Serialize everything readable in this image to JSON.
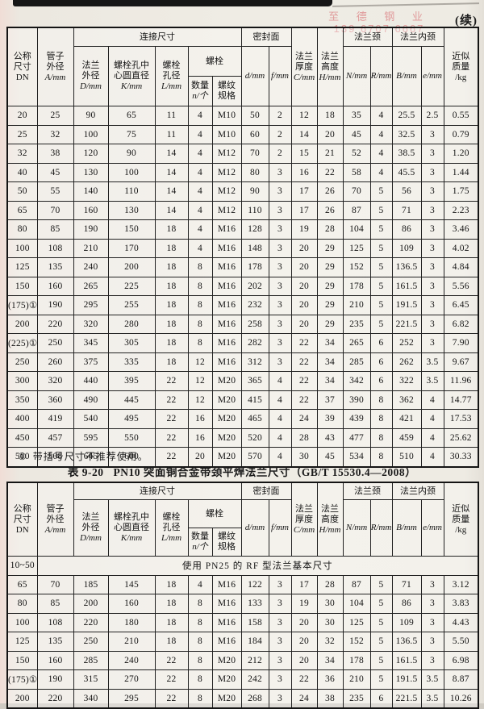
{
  "page": {
    "continued_label": "(续)",
    "watermark": {
      "name": "至 德 钢 业",
      "phone": "139 6707 6667",
      "color": "#e09c9c"
    }
  },
  "headers": {
    "dn": [
      "公称",
      "尺寸",
      "DN"
    ],
    "pipe": [
      "管子",
      "外径",
      "A/mm"
    ],
    "group_connect": "连接尺寸",
    "flange_od": [
      "法兰",
      "外径",
      "D/mm"
    ],
    "bolt_circle": [
      "螺栓孔中",
      "心圆直径",
      "K/mm"
    ],
    "bolt_hole": [
      "螺栓",
      "孔径",
      "L/mm"
    ],
    "group_bolt": "螺栓",
    "bolt_qty": [
      "数量",
      "n/个"
    ],
    "bolt_thread": [
      "螺纹",
      "规格"
    ],
    "group_seal": "密封面",
    "seal_d": "d/mm",
    "seal_f": "f/mm",
    "thickness": [
      "法兰",
      "厚度",
      "C/mm"
    ],
    "height": [
      "法兰",
      "高度",
      "H/mm"
    ],
    "group_neck": "法兰颈",
    "neck_n": "N/mm",
    "neck_r": "R/mm",
    "group_inner_neck": "法兰内颈",
    "inner_b": "B/mm",
    "inner_e": "e/mm",
    "mass": [
      "近似",
      "质量",
      "/kg"
    ]
  },
  "table1": {
    "rows": [
      [
        "20",
        "25",
        "90",
        "65",
        "11",
        "4",
        "M10",
        "50",
        "2",
        "12",
        "18",
        "35",
        "4",
        "25.5",
        "2.5",
        "0.55"
      ],
      [
        "25",
        "32",
        "100",
        "75",
        "11",
        "4",
        "M10",
        "60",
        "2",
        "14",
        "20",
        "45",
        "4",
        "32.5",
        "3",
        "0.79"
      ],
      [
        "32",
        "38",
        "120",
        "90",
        "14",
        "4",
        "M12",
        "70",
        "2",
        "15",
        "21",
        "52",
        "4",
        "38.5",
        "3",
        "1.20"
      ],
      [
        "40",
        "45",
        "130",
        "100",
        "14",
        "4",
        "M12",
        "80",
        "3",
        "16",
        "22",
        "58",
        "4",
        "45.5",
        "3",
        "1.44"
      ],
      [
        "50",
        "55",
        "140",
        "110",
        "14",
        "4",
        "M12",
        "90",
        "3",
        "17",
        "26",
        "70",
        "5",
        "56",
        "3",
        "1.75"
      ],
      [
        "65",
        "70",
        "160",
        "130",
        "14",
        "4",
        "M12",
        "110",
        "3",
        "17",
        "26",
        "87",
        "5",
        "71",
        "3",
        "2.23"
      ],
      [
        "80",
        "85",
        "190",
        "150",
        "18",
        "4",
        "M16",
        "128",
        "3",
        "19",
        "28",
        "104",
        "5",
        "86",
        "3",
        "3.46"
      ],
      [
        "100",
        "108",
        "210",
        "170",
        "18",
        "4",
        "M16",
        "148",
        "3",
        "20",
        "29",
        "125",
        "5",
        "109",
        "3",
        "4.02"
      ],
      [
        "125",
        "135",
        "240",
        "200",
        "18",
        "8",
        "M16",
        "178",
        "3",
        "20",
        "29",
        "152",
        "5",
        "136.5",
        "3",
        "4.84"
      ],
      [
        "150",
        "160",
        "265",
        "225",
        "18",
        "8",
        "M16",
        "202",
        "3",
        "20",
        "29",
        "178",
        "5",
        "161.5",
        "3",
        "5.56"
      ],
      [
        "(175)①",
        "190",
        "295",
        "255",
        "18",
        "8",
        "M16",
        "232",
        "3",
        "20",
        "29",
        "210",
        "5",
        "191.5",
        "3",
        "6.45"
      ],
      [
        "200",
        "220",
        "320",
        "280",
        "18",
        "8",
        "M16",
        "258",
        "3",
        "20",
        "29",
        "235",
        "5",
        "221.5",
        "3",
        "6.82"
      ],
      [
        "(225)①",
        "250",
        "345",
        "305",
        "18",
        "8",
        "M16",
        "282",
        "3",
        "22",
        "34",
        "265",
        "6",
        "252",
        "3",
        "7.90"
      ],
      [
        "250",
        "260",
        "375",
        "335",
        "18",
        "12",
        "M16",
        "312",
        "3",
        "22",
        "34",
        "285",
        "6",
        "262",
        "3.5",
        "9.67"
      ],
      [
        "300",
        "320",
        "440",
        "395",
        "22",
        "12",
        "M20",
        "365",
        "4",
        "22",
        "34",
        "342",
        "6",
        "322",
        "3.5",
        "11.96"
      ],
      [
        "350",
        "360",
        "490",
        "445",
        "22",
        "12",
        "M20",
        "415",
        "4",
        "22",
        "37",
        "390",
        "8",
        "362",
        "4",
        "14.77"
      ],
      [
        "400",
        "419",
        "540",
        "495",
        "22",
        "16",
        "M20",
        "465",
        "4",
        "24",
        "39",
        "439",
        "8",
        "421",
        "4",
        "17.53"
      ],
      [
        "450",
        "457",
        "595",
        "550",
        "22",
        "16",
        "M20",
        "520",
        "4",
        "28",
        "43",
        "477",
        "8",
        "459",
        "4",
        "25.62"
      ],
      [
        "500",
        "508",
        "645",
        "600",
        "22",
        "20",
        "M20",
        "570",
        "4",
        "30",
        "45",
        "534",
        "8",
        "510",
        "4",
        "30.33"
      ]
    ]
  },
  "footnote": {
    "marker": "①",
    "text": "带括号尺寸不推荐使用。"
  },
  "table2": {
    "caption": {
      "label": "表 9-20",
      "title": "PN10 突面铜合金带颈平焊法兰尺寸（GB/T 15530.4—2008）"
    },
    "span_row": {
      "dn": "10~50",
      "text": "使用 PN25 的 RF 型法兰基本尺寸"
    },
    "rows": [
      [
        "65",
        "70",
        "185",
        "145",
        "18",
        "4",
        "M16",
        "122",
        "3",
        "17",
        "28",
        "87",
        "5",
        "71",
        "3",
        "3.12"
      ],
      [
        "80",
        "85",
        "200",
        "160",
        "18",
        "8",
        "M16",
        "133",
        "3",
        "19",
        "30",
        "104",
        "5",
        "86",
        "3",
        "3.83"
      ],
      [
        "100",
        "108",
        "220",
        "180",
        "18",
        "8",
        "M16",
        "158",
        "3",
        "20",
        "30",
        "125",
        "5",
        "109",
        "3",
        "4.43"
      ],
      [
        "125",
        "135",
        "250",
        "210",
        "18",
        "8",
        "M16",
        "184",
        "3",
        "20",
        "32",
        "152",
        "5",
        "136.5",
        "3",
        "5.50"
      ],
      [
        "150",
        "160",
        "285",
        "240",
        "22",
        "8",
        "M20",
        "212",
        "3",
        "20",
        "34",
        "178",
        "5",
        "161.5",
        "3",
        "6.98"
      ],
      [
        "(175)①",
        "190",
        "315",
        "270",
        "22",
        "8",
        "M20",
        "242",
        "3",
        "22",
        "36",
        "210",
        "5",
        "191.5",
        "3.5",
        "8.87"
      ],
      [
        "200",
        "220",
        "340",
        "295",
        "22",
        "8",
        "M20",
        "268",
        "3",
        "24",
        "38",
        "235",
        "6",
        "221.5",
        "3.5",
        "10.26"
      ]
    ]
  },
  "colors": {
    "ink": "#141414",
    "paper": "#eeebe3",
    "watermark_red": "#e09c9c"
  }
}
